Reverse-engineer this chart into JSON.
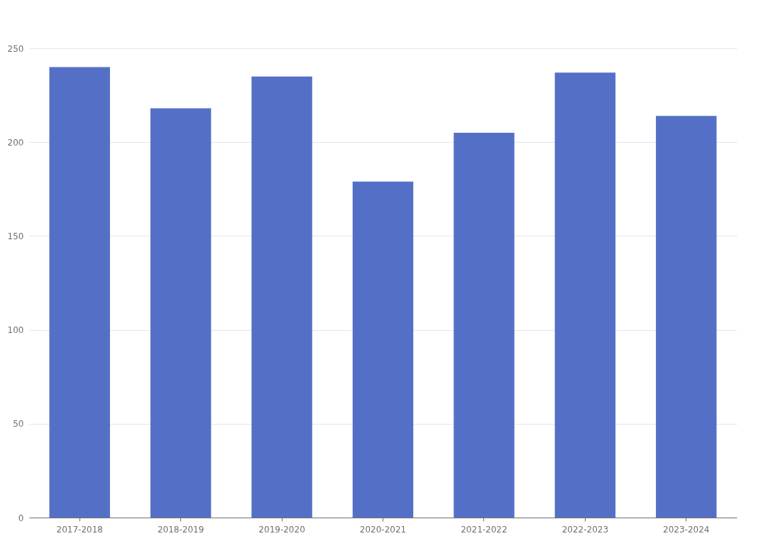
{
  "chart_data": {
    "type": "bar",
    "categories": [
      "2017-2018",
      "2018-2019",
      "2019-2020",
      "2020-2021",
      "2021-2022",
      "2022-2023",
      "2023-2024"
    ],
    "values": [
      240,
      218,
      235,
      179,
      205,
      237,
      214
    ],
    "color": "#5470c6",
    "ylim": [
      0,
      250
    ],
    "yticks": [
      0,
      50,
      100,
      150,
      200,
      250
    ],
    "grid": "y"
  }
}
